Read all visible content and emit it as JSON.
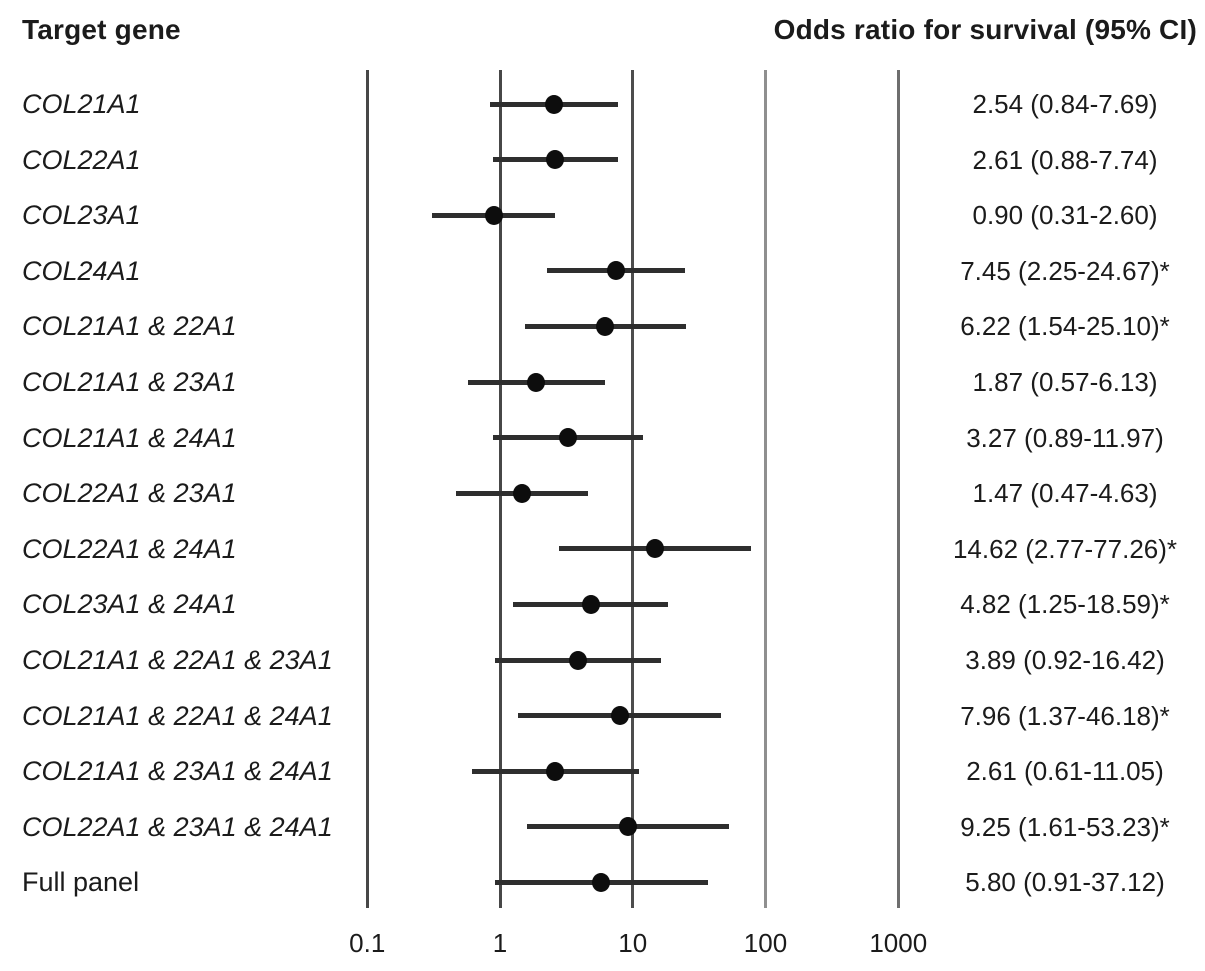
{
  "title_row": {
    "left_header": "Target gene",
    "right_header": "Odds ratio for survival (95% CI)"
  },
  "chart_data": {
    "type": "forest",
    "title": "",
    "xlabel": "",
    "x_axis": {
      "scale": "log",
      "range": [
        0.1,
        1000
      ],
      "grid": "vertical-lines-at-ticks",
      "ticks": [
        {
          "label": "0.1",
          "value": 0.1
        },
        {
          "label": "1",
          "value": 1
        },
        {
          "label": "10",
          "value": 10
        },
        {
          "label": "100",
          "value": 100
        },
        {
          "label": "1000",
          "value": 1000
        }
      ]
    },
    "rows": [
      {
        "gene": "COL21A1",
        "italic": true,
        "or": 2.54,
        "ci_low": 0.84,
        "ci_high": 7.69,
        "significant": false,
        "value_label": "2.54 (0.84-7.69)"
      },
      {
        "gene": "COL22A1",
        "italic": true,
        "or": 2.61,
        "ci_low": 0.88,
        "ci_high": 7.74,
        "significant": false,
        "value_label": "2.61 (0.88-7.74)"
      },
      {
        "gene": "COL23A1",
        "italic": true,
        "or": 0.9,
        "ci_low": 0.31,
        "ci_high": 2.6,
        "significant": false,
        "value_label": "0.90 (0.31-2.60)"
      },
      {
        "gene": "COL24A1",
        "italic": true,
        "or": 7.45,
        "ci_low": 2.25,
        "ci_high": 24.67,
        "significant": true,
        "value_label": "7.45 (2.25-24.67)*"
      },
      {
        "gene": "COL21A1 & 22A1",
        "italic": true,
        "or": 6.22,
        "ci_low": 1.54,
        "ci_high": 25.1,
        "significant": true,
        "value_label": "6.22 (1.54-25.10)*"
      },
      {
        "gene": "COL21A1 & 23A1",
        "italic": true,
        "or": 1.87,
        "ci_low": 0.57,
        "ci_high": 6.13,
        "significant": false,
        "value_label": "1.87 (0.57-6.13)"
      },
      {
        "gene": "COL21A1 & 24A1",
        "italic": true,
        "or": 3.27,
        "ci_low": 0.89,
        "ci_high": 11.97,
        "significant": false,
        "value_label": "3.27 (0.89-11.97)"
      },
      {
        "gene": "COL22A1 & 23A1",
        "italic": true,
        "or": 1.47,
        "ci_low": 0.47,
        "ci_high": 4.63,
        "significant": false,
        "value_label": "1.47 (0.47-4.63)"
      },
      {
        "gene": "COL22A1 & 24A1",
        "italic": true,
        "or": 14.62,
        "ci_low": 2.77,
        "ci_high": 77.26,
        "significant": true,
        "value_label": "14.62 (2.77-77.26)*"
      },
      {
        "gene": "COL23A1 & 24A1",
        "italic": true,
        "or": 4.82,
        "ci_low": 1.25,
        "ci_high": 18.59,
        "significant": true,
        "value_label": "4.82 (1.25-18.59)*"
      },
      {
        "gene": "COL21A1 & 22A1 & 23A1",
        "italic": true,
        "or": 3.89,
        "ci_low": 0.92,
        "ci_high": 16.42,
        "significant": false,
        "value_label": "3.89 (0.92-16.42)"
      },
      {
        "gene": "COL21A1 & 22A1 & 24A1",
        "italic": true,
        "or": 7.96,
        "ci_low": 1.37,
        "ci_high": 46.18,
        "significant": true,
        "value_label": "7.96 (1.37-46.18)*"
      },
      {
        "gene": "COL21A1 & 23A1 & 24A1",
        "italic": true,
        "or": 2.61,
        "ci_low": 0.61,
        "ci_high": 11.05,
        "significant": false,
        "value_label": "2.61 (0.61-11.05)"
      },
      {
        "gene": "COL22A1 & 23A1 & 24A1",
        "italic": true,
        "or": 9.25,
        "ci_low": 1.61,
        "ci_high": 53.23,
        "significant": true,
        "value_label": "9.25 (1.61-53.23)*"
      },
      {
        "gene": "Full panel",
        "italic": false,
        "or": 5.8,
        "ci_low": 0.91,
        "ci_high": 37.12,
        "significant": false,
        "value_label": "5.80 (0.91-37.12)"
      }
    ]
  },
  "colors": {
    "text": "#1b1b1b",
    "marker": "#0d0d0d",
    "ci_line": "#2e2e2e",
    "gridlines": [
      "#474747",
      "#474747",
      "#4d4d4d",
      "#8f8f8f",
      "#6e6e6e"
    ]
  }
}
